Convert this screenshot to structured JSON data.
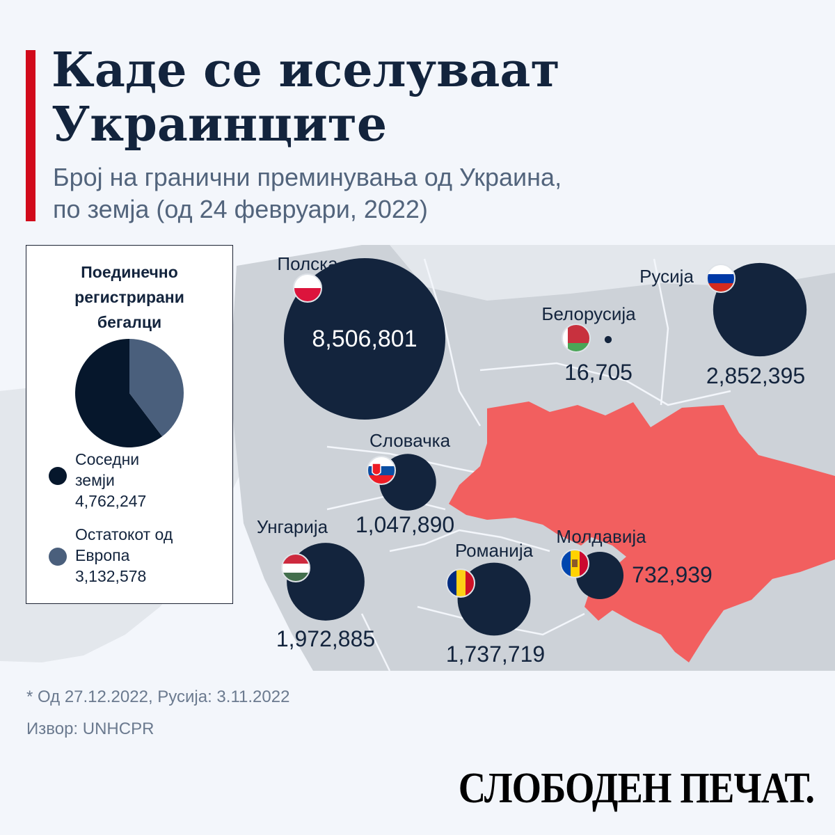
{
  "title_lines": [
    "Каде се иселуваат",
    "Украинците"
  ],
  "subtitle_lines": [
    "Број на гранични преминувања од Украина,",
    "по земја (од 24 февруари, 2022)"
  ],
  "colors": {
    "accent": "#d10a1b",
    "bubble": "#13243d",
    "ukraine": "#f25f5f",
    "land": "#cdd2d8",
    "land_light": "#e3e7ec",
    "border": "#f3f6fb",
    "pie_neighbors": "#06172c",
    "pie_rest": "#4a5f7c"
  },
  "countries": [
    {
      "id": "poland",
      "name": "Полска",
      "value": 8506801,
      "value_text": "8,506,801",
      "flag": "flag-poland-icon"
    },
    {
      "id": "russia",
      "name": "Русија",
      "value": 2852395,
      "value_text": "2,852,395",
      "flag": "flag-russia-icon"
    },
    {
      "id": "belarus",
      "name": "Белорусија",
      "value": 16705,
      "value_text": "16,705",
      "flag": "flag-belarus-icon"
    },
    {
      "id": "slovakia",
      "name": "Словачка",
      "value": 1047890,
      "value_text": "1,047,890",
      "flag": "flag-slovakia-icon"
    },
    {
      "id": "hungary",
      "name": "Унгарија",
      "value": 1972885,
      "value_text": "1,972,885",
      "flag": "flag-hungary-icon"
    },
    {
      "id": "romania",
      "name": "Романија",
      "value": 1737719,
      "value_text": "1,737,719",
      "flag": "flag-romania-icon"
    },
    {
      "id": "moldova",
      "name": "Молдавија",
      "value": 732939,
      "value_text": "732,939",
      "flag": "flag-moldova-icon"
    }
  ],
  "legend": {
    "title_lines": [
      "Поединечно",
      "регистрирани",
      "бегалци"
    ],
    "slices": [
      {
        "label_lines": [
          "Соседни",
          "земји"
        ],
        "value": 4762247,
        "value_text": "4,762,247"
      },
      {
        "label_lines": [
          "Остатокот од",
          "Европа"
        ],
        "value": 3132578,
        "value_text": "3,132,578"
      }
    ]
  },
  "footnote": "* Од 27.12.2022, Русија: 3.11.2022",
  "source": "Извор: UNHCPR",
  "brand": "СЛОБОДЕН ПЕЧАТ."
}
